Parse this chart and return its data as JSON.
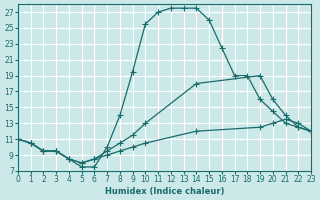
{
  "xlabel": "Humidex (Indice chaleur)",
  "bg_color": "#cce8e8",
  "grid_color": "#ffffff",
  "line_color": "#1a6b6b",
  "xlim": [
    0,
    23
  ],
  "ylim": [
    7,
    28
  ],
  "yticks": [
    7,
    9,
    11,
    13,
    15,
    17,
    19,
    21,
    23,
    25,
    27
  ],
  "xticks": [
    0,
    1,
    2,
    3,
    4,
    5,
    6,
    7,
    8,
    9,
    10,
    11,
    12,
    13,
    14,
    15,
    16,
    17,
    18,
    19,
    20,
    21,
    22,
    23
  ],
  "curve1_x": [
    0,
    1,
    2,
    3,
    4,
    5,
    6,
    7,
    8,
    9,
    10,
    11,
    12,
    13,
    14,
    15,
    16,
    17,
    18,
    19,
    20,
    21,
    22,
    23
  ],
  "curve1_y": [
    11,
    10.5,
    9.5,
    9.5,
    8.5,
    7.5,
    7.5,
    10,
    14,
    19.5,
    25.5,
    27,
    27.5,
    27.5,
    27.5,
    26,
    22.5,
    19,
    19,
    16,
    14.5,
    13,
    12.5,
    12
  ],
  "curve2_x": [
    0,
    1,
    2,
    3,
    4,
    5,
    6,
    7,
    8,
    9,
    10,
    14,
    19,
    20,
    21,
    22,
    23
  ],
  "curve2_y": [
    11,
    10.5,
    9.5,
    9.5,
    8.5,
    8.0,
    8.5,
    9.5,
    10.5,
    11.5,
    13,
    18,
    19,
    16,
    14,
    12.5,
    12
  ],
  "curve3_x": [
    0,
    1,
    2,
    3,
    4,
    5,
    6,
    7,
    8,
    9,
    10,
    14,
    19,
    20,
    21,
    22,
    23
  ],
  "curve3_y": [
    11,
    10.5,
    9.5,
    9.5,
    8.5,
    8.0,
    8.5,
    9.0,
    9.5,
    10.0,
    10.5,
    12,
    12.5,
    13,
    13.5,
    13,
    12
  ]
}
